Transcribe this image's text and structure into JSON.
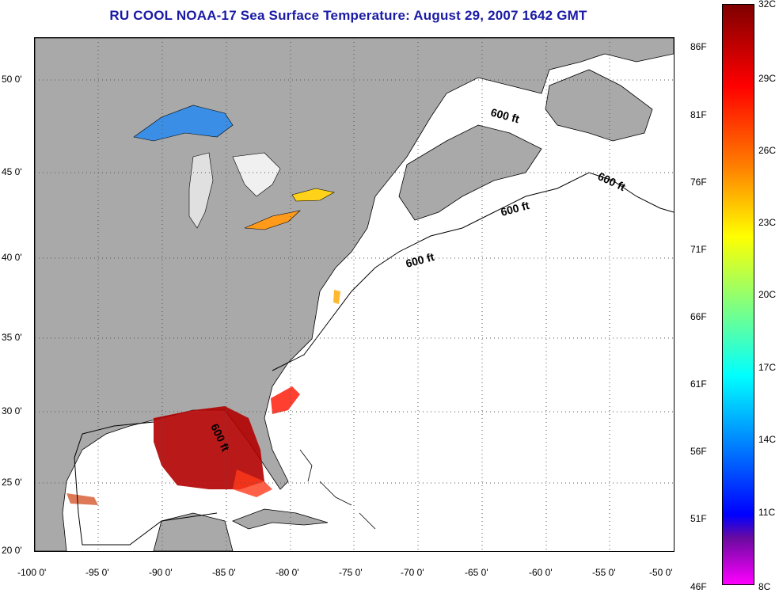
{
  "title": "RU COOL  NOAA-17  Sea Surface Temperature:  August 29, 2007 1642 GMT",
  "map": {
    "lon_min": -100,
    "lon_max": -50,
    "lat_min": 20,
    "lat_max": 52.5,
    "lat_ticks": [
      "50 0'",
      "45 0'",
      "40 0'",
      "35 0'",
      "30 0'",
      "25 0'",
      "20 0'"
    ],
    "lon_ticks": [
      "-100 0'",
      "-95 0'",
      "-90 0'",
      "-85 0'",
      "-80 0'",
      "-75 0'",
      "-70 0'",
      "-65 0'",
      "-60 0'",
      "-55 0'",
      "-50 0'"
    ],
    "contour_labels": [
      "600 ft",
      "600 ft",
      "600 ft",
      "600 ft",
      "600 ft"
    ],
    "land_color": "#a9a9a9",
    "ocean_color": "#ffffff"
  },
  "colorbar": {
    "celsius": [
      "32C",
      "29C",
      "26C",
      "23C",
      "20C",
      "17C",
      "14C",
      "11C",
      "8C"
    ],
    "fahrenheit": [
      "86F",
      "81F",
      "76F",
      "71F",
      "66F",
      "61F",
      "56F",
      "51F",
      "46F"
    ],
    "colors_top_to_bottom": [
      "#7f0000",
      "#ff0000",
      "#ff8000",
      "#ffff00",
      "#80ff80",
      "#00ffff",
      "#0080ff",
      "#0000ff",
      "#ff00ff"
    ]
  }
}
